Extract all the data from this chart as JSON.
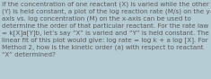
{
  "text": "If the concentration of one reactant (X) is varied while the other\n(Y) is held constant, a plot of the log reaction rate (M/s) on the y-\naxis vs. log concentration (M) on the x-axis can be used to\ndetermine the order of that particular reactant. For the rate law\n= k[X]a[Y]b, let’s say “X” is varied and “Y” is held constant. The\nlinear fit of this plot would give: log rate = log k + a log [X]. For\nMethod 2, how is the kinetic order (a) with respect to reactant\n“X” determined?",
  "background_color": "#b5ccd5",
  "text_color": "#5a5a5a",
  "font_size": 5.2,
  "fig_width": 2.35,
  "fig_height": 0.88,
  "dpi": 100
}
